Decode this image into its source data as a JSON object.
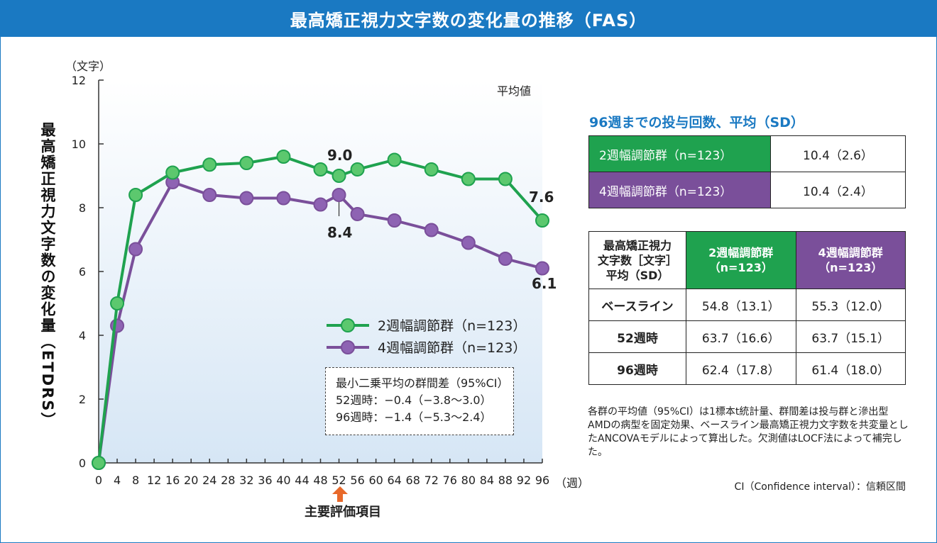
{
  "title": "最高矯正視力文字数の変化量の推移（FAS）",
  "colors": {
    "accent": "#1a79c2",
    "green": "#1fa24f",
    "purple": "#7a4f9a",
    "green_marker": "#5cc86e",
    "purple_marker": "#8e63b3",
    "arrow": "#e8692a"
  },
  "chart_data": {
    "type": "line",
    "ylabel": "最高矯正視力文字数の変化量（ETDRS）",
    "yunit": "（文字）",
    "xunit": "（週）",
    "note": "平均値",
    "ylim": [
      0,
      12
    ],
    "yticks": [
      "0",
      "2",
      "4",
      "6",
      "8",
      "10",
      "12"
    ],
    "xlim": [
      0,
      96
    ],
    "xticks": [
      "0",
      "4",
      "8",
      "12",
      "16",
      "20",
      "24",
      "28",
      "32",
      "36",
      "40",
      "44",
      "48",
      "52",
      "56",
      "60",
      "64",
      "68",
      "72",
      "76",
      "80",
      "84",
      "88",
      "92",
      "96"
    ],
    "series": [
      {
        "name": "2週幅調節群（n=123）",
        "color": "#1fa24f",
        "marker": "#5cc86e",
        "x": [
          0,
          4,
          8,
          16,
          24,
          32,
          40,
          48,
          52,
          56,
          64,
          72,
          80,
          88,
          96
        ],
        "values": [
          0,
          5.0,
          8.4,
          9.1,
          9.35,
          9.4,
          9.6,
          9.2,
          9.0,
          9.2,
          9.5,
          9.2,
          8.9,
          8.9,
          7.6
        ]
      },
      {
        "name": "4週幅調節群（n=123）",
        "color": "#7a4f9a",
        "marker": "#8e63b3",
        "x": [
          0,
          4,
          8,
          16,
          24,
          32,
          40,
          48,
          52,
          56,
          64,
          72,
          80,
          88,
          96
        ],
        "values": [
          0,
          4.3,
          6.7,
          8.8,
          8.4,
          8.3,
          8.3,
          8.1,
          8.4,
          7.8,
          7.6,
          7.3,
          6.9,
          6.4,
          6.1
        ]
      }
    ],
    "annotations": [
      "9.0",
      "8.4",
      "7.6",
      "6.1"
    ],
    "primary_endpoint": "主要評価項目",
    "stat_box": [
      "最小二乗平均の群間差（95%CI）",
      "52週時：−0.4（−3.8〜3.0）",
      "96週時：−1.4（−5.3〜2.4）"
    ]
  },
  "dose_table": {
    "title": "96週までの投与回数、平均（SD）",
    "rows": [
      {
        "label": "2週幅調節群（n=123）",
        "value": "10.4（2.6）"
      },
      {
        "label": "4週幅調節群（n=123）",
        "value": "10.4（2.4）"
      }
    ]
  },
  "bcva_table": {
    "header_lines": [
      "最高矯正視力",
      "文字数［文字］",
      "平均（SD）"
    ],
    "col1": [
      "2週幅調節群",
      "（n=123）"
    ],
    "col2": [
      "4週幅調節群",
      "（n=123）"
    ],
    "rows": [
      {
        "label": "ベースライン",
        "a": "54.8（13.1）",
        "b": "55.3（12.0）"
      },
      {
        "label": "52週時",
        "a": "63.7（16.6）",
        "b": "63.7（15.1）"
      },
      {
        "label": "96週時",
        "a": "62.4（17.8）",
        "b": "61.4（18.0）"
      }
    ]
  },
  "footnote": "各群の平均値（95%CI）は1標本t統計量、群間差は投与群と滲出型AMDの病型を固定効果、ベースライン最高矯正視力文字数を共変量としたANCOVAモデルによって算出した。欠測値はLOCF法によって補完した。",
  "ci_note": "CI（Confidence interval）：信頼区間"
}
